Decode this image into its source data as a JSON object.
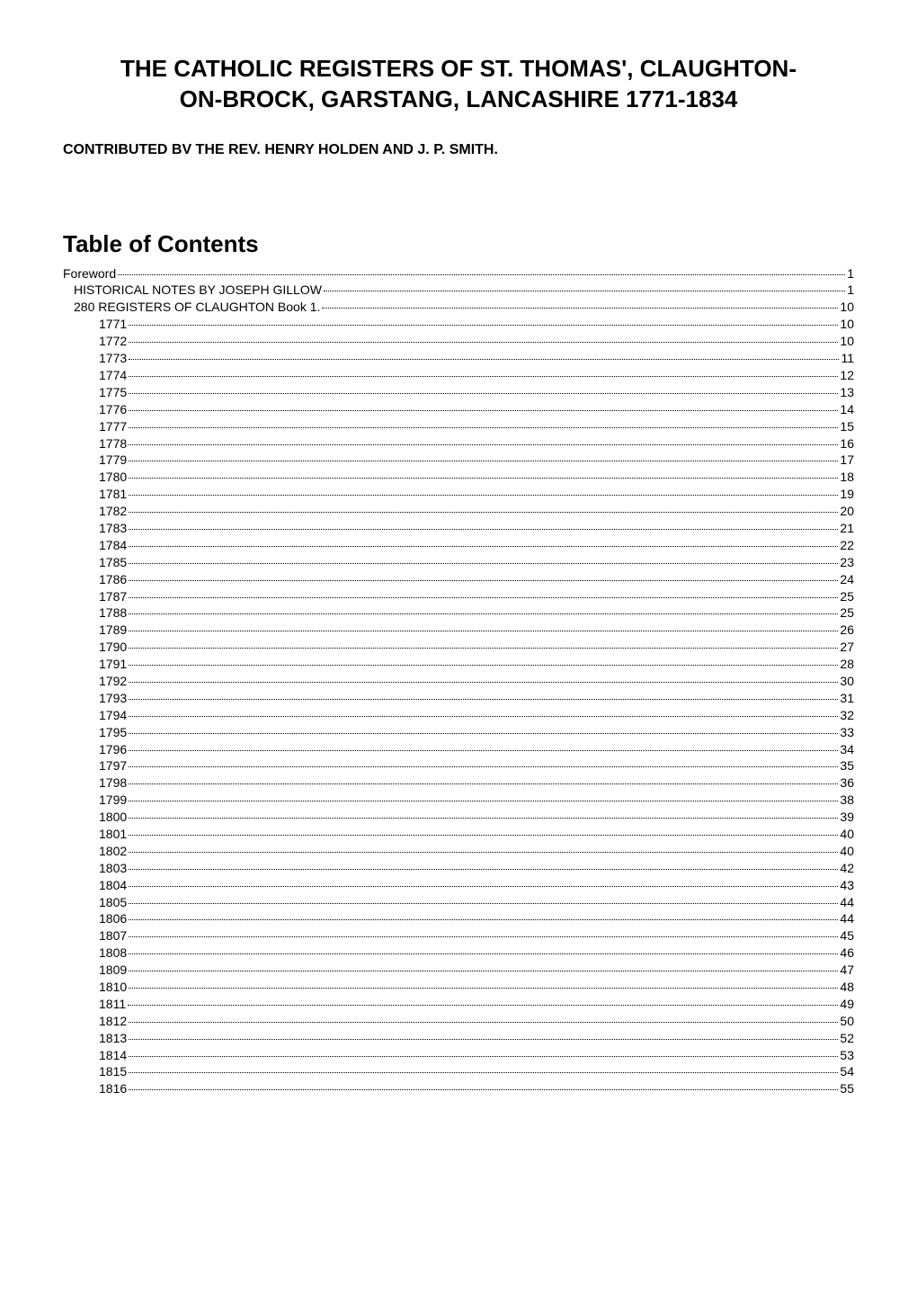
{
  "title_line1": "THE CATHOLIC REGISTERS OF ST. THOMAS', CLAUGHTON-",
  "title_line2": "ON-BROCK, GARSTANG, LANCASHIRE 1771-1834",
  "subtitle": "CONTRIBUTED BV THE REV. HENRY HOLDEN  AND J. P. SMITH.",
  "toc_heading": "Table of Contents",
  "colors": {
    "text": "#000000",
    "background": "#ffffff"
  },
  "typography": {
    "title_fontsize": 26,
    "title_weight": "bold",
    "subtitle_fontsize": 16,
    "subtitle_weight": "bold",
    "toc_heading_fontsize": 26,
    "toc_entry_fontsize": 14,
    "font_family": "Arial"
  },
  "toc": [
    {
      "label": "Foreword",
      "page": "1",
      "level": 0
    },
    {
      "label": "HISTORICAL NOTES BY JOSEPH GILLOW",
      "page": "1",
      "level": 1
    },
    {
      "label": "280 REGISTERS OF CLAUGHTON Book 1. ",
      "page": "10",
      "level": 1
    },
    {
      "label": "1771 ",
      "page": "10",
      "level": 2
    },
    {
      "label": "1772 ",
      "page": "10",
      "level": 2
    },
    {
      "label": "1773 ",
      "page": "11",
      "level": 2
    },
    {
      "label": "1774 ",
      "page": "12",
      "level": 2
    },
    {
      "label": "1775 ",
      "page": "13",
      "level": 2
    },
    {
      "label": "1776 ",
      "page": "14",
      "level": 2
    },
    {
      "label": "1777 ",
      "page": "15",
      "level": 2
    },
    {
      "label": "1778 ",
      "page": "16",
      "level": 2
    },
    {
      "label": "1779",
      "page": "17",
      "level": 2
    },
    {
      "label": "1780 ",
      "page": "18",
      "level": 2
    },
    {
      "label": "1781 ",
      "page": "19",
      "level": 2
    },
    {
      "label": "1782",
      "page": "20",
      "level": 2
    },
    {
      "label": "1783 ",
      "page": "21",
      "level": 2
    },
    {
      "label": "1784",
      "page": "22",
      "level": 2
    },
    {
      "label": "1785 ",
      "page": "23",
      "level": 2
    },
    {
      "label": "1786",
      "page": "24",
      "level": 2
    },
    {
      "label": "1787 ",
      "page": "25",
      "level": 2
    },
    {
      "label": "1788 ",
      "page": "25",
      "level": 2
    },
    {
      "label": "1789 ",
      "page": "26",
      "level": 2
    },
    {
      "label": "1790 ",
      "page": "27",
      "level": 2
    },
    {
      "label": "1791",
      "page": "28",
      "level": 2
    },
    {
      "label": "1792 ",
      "page": "30",
      "level": 2
    },
    {
      "label": "1793 ",
      "page": "31",
      "level": 2
    },
    {
      "label": "1794",
      "page": "32",
      "level": 2
    },
    {
      "label": "1795 ",
      "page": "33",
      "level": 2
    },
    {
      "label": "1796 ",
      "page": "34",
      "level": 2
    },
    {
      "label": "1797 ",
      "page": "35",
      "level": 2
    },
    {
      "label": "1798 ",
      "page": "36",
      "level": 2
    },
    {
      "label": "1799 ",
      "page": "38",
      "level": 2
    },
    {
      "label": "1800 ",
      "page": "39",
      "level": 2
    },
    {
      "label": "1801 ",
      "page": "40",
      "level": 2
    },
    {
      "label": "1802 ",
      "page": "40",
      "level": 2
    },
    {
      "label": "1803 ",
      "page": "42",
      "level": 2
    },
    {
      "label": "1804",
      "page": "43",
      "level": 2
    },
    {
      "label": "1805",
      "page": "44",
      "level": 2
    },
    {
      "label": "1806 ",
      "page": "44",
      "level": 2
    },
    {
      "label": "1807 ",
      "page": "45",
      "level": 2
    },
    {
      "label": "1808 ",
      "page": "46",
      "level": 2
    },
    {
      "label": "1809",
      "page": "47",
      "level": 2
    },
    {
      "label": "1810 ",
      "page": "48",
      "level": 2
    },
    {
      "label": "1811 ",
      "page": "49",
      "level": 2
    },
    {
      "label": "1812 ",
      "page": "50",
      "level": 2
    },
    {
      "label": "1813 ",
      "page": "52",
      "level": 2
    },
    {
      "label": "1814 ",
      "page": "53",
      "level": 2
    },
    {
      "label": "1815",
      "page": "54",
      "level": 2
    },
    {
      "label": "1816 ",
      "page": "55",
      "level": 2
    }
  ]
}
